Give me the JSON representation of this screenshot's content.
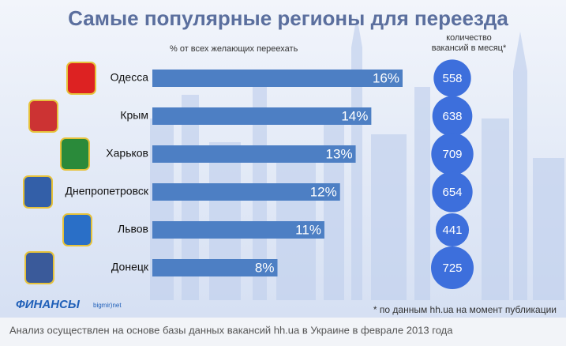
{
  "chart_data": {
    "type": "bar",
    "title": "Самые популярные регионы для переезда",
    "subtitle": "% от всех желающих переехать",
    "categories": [
      "Одесса",
      "Крым",
      "Харьков",
      "Днепропетровск",
      "Львов",
      "Донецк"
    ],
    "values": [
      16,
      14,
      13,
      12,
      11,
      8
    ],
    "value_labels": [
      "16%",
      "14%",
      "13%",
      "12%",
      "11%",
      "8%"
    ],
    "color": "#4d7fc4",
    "bubbles": {
      "title": [
        "количество",
        "вакансий в месяц*"
      ],
      "values": [
        558,
        638,
        709,
        654,
        441,
        725
      ],
      "color": "#3d6fdc"
    },
    "footnote": "* по данным hh.ua на момент публикации",
    "source": "Анализ осуществлен на основе базы данных вакансий hh.ua в Украине в феврале 2013 года",
    "logo": {
      "name": "ФИНАНСЫ",
      "site": "bigmir)net"
    }
  }
}
